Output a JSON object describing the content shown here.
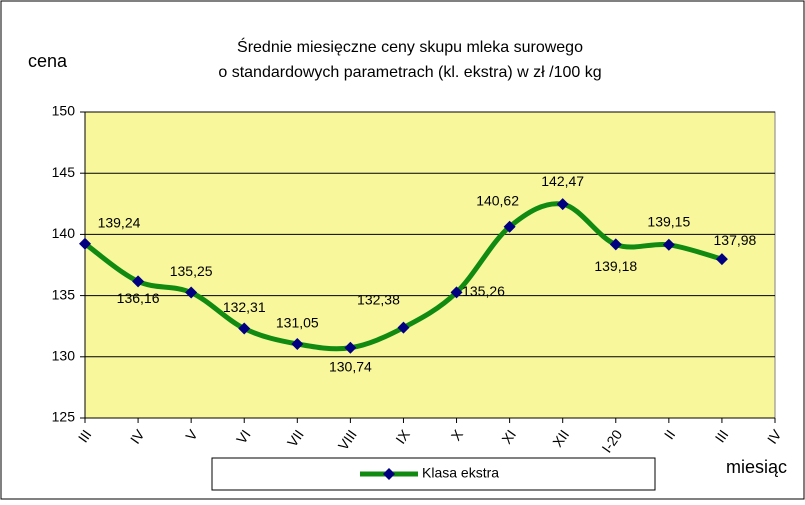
{
  "chart_data": {
    "type": "line",
    "title": [
      "Średnie miesięczne ceny skupu mleka surowego",
      "o standardowych parametrach (kl. ekstra) w zł /100 kg"
    ],
    "ylabel": "cena",
    "xlabel": "miesiąc",
    "categories": [
      "III",
      "IV",
      "V",
      "VI",
      "VII",
      "VIII",
      "IX",
      "X",
      "XI",
      "XII",
      "I-20",
      "II",
      "III",
      "IV"
    ],
    "series": [
      {
        "name": "Klasa ekstra",
        "color": "#108a10",
        "marker_color": "#000080",
        "values": [
          139.24,
          136.16,
          135.25,
          132.31,
          131.05,
          130.74,
          132.38,
          135.26,
          140.62,
          142.47,
          139.18,
          139.15,
          137.98,
          null
        ],
        "value_labels": [
          "139,24",
          "136,16",
          "135,25",
          "132,31",
          "131,05",
          "130,74",
          "132,38",
          "135,26",
          "140,62",
          "142,47",
          "139,18",
          "139,15",
          "137,98",
          null
        ]
      }
    ],
    "ylim": [
      125,
      150
    ],
    "yticks": [
      125,
      130,
      135,
      140,
      145,
      150
    ],
    "grid": true,
    "smooth": true,
    "plot_background": "#f8f79c",
    "legend": "bottom"
  }
}
